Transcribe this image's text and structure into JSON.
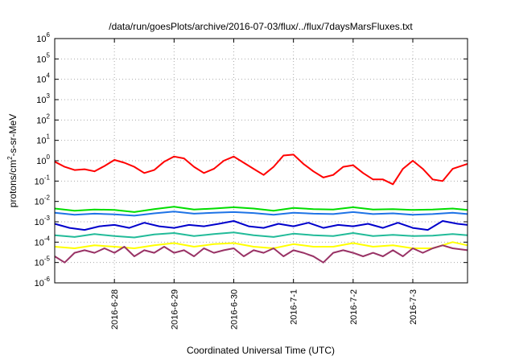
{
  "chart_data": {
    "type": "line",
    "title": "/data/run/goesPlots/archive/2016-07-03/flux/../flux/7daysMarsFluxes.txt",
    "xlabel": "Coordinated Universal Time (UTC)",
    "ylabel": "protons/cm²-s-sr-MeV",
    "yscale": "log",
    "ylim": [
      1e-06,
      1000000.0
    ],
    "y_ticks": [
      {
        "base": "10",
        "exp": "-6"
      },
      {
        "base": "10",
        "exp": "-5"
      },
      {
        "base": "10",
        "exp": "-4"
      },
      {
        "base": "10",
        "exp": "-3"
      },
      {
        "base": "10",
        "exp": "-2"
      },
      {
        "base": "10",
        "exp": "-1"
      },
      {
        "base": "10",
        "exp": "0"
      },
      {
        "base": "10",
        "exp": "1"
      },
      {
        "base": "10",
        "exp": "2"
      },
      {
        "base": "10",
        "exp": "3"
      },
      {
        "base": "10",
        "exp": "4"
      },
      {
        "base": "10",
        "exp": "5"
      },
      {
        "base": "10",
        "exp": "6"
      }
    ],
    "xlim": [
      "2016-06-27 00:00",
      "2016-07-03 22:00"
    ],
    "x_ticks": [
      "2016-6-28",
      "2016-6-29",
      "2016-6-30",
      "2016-7-1",
      "2016-7-2",
      "2016-7-3"
    ],
    "grid": true,
    "series": [
      {
        "color": "#ff0000",
        "x": [
          "2016-06-27 00:00",
          "2016-06-27 04:00",
          "2016-06-27 08:00",
          "2016-06-27 12:00",
          "2016-06-27 16:00",
          "2016-06-27 20:00",
          "2016-06-28 00:00",
          "2016-06-28 04:00",
          "2016-06-28 08:00",
          "2016-06-28 12:00",
          "2016-06-28 16:00",
          "2016-06-28 20:00",
          "2016-06-29 00:00",
          "2016-06-29 04:00",
          "2016-06-29 08:00",
          "2016-06-29 12:00",
          "2016-06-29 16:00",
          "2016-06-29 20:00",
          "2016-06-30 00:00",
          "2016-06-30 04:00",
          "2016-06-30 08:00",
          "2016-06-30 12:00",
          "2016-06-30 16:00",
          "2016-06-30 20:00",
          "2016-07-01 00:00",
          "2016-07-01 04:00",
          "2016-07-01 08:00",
          "2016-07-01 12:00",
          "2016-07-01 16:00",
          "2016-07-01 20:00",
          "2016-07-02 00:00",
          "2016-07-02 04:00",
          "2016-07-02 08:00",
          "2016-07-02 12:00",
          "2016-07-02 16:00",
          "2016-07-02 20:00",
          "2016-07-03 00:00",
          "2016-07-03 04:00",
          "2016-07-03 08:00",
          "2016-07-03 12:00",
          "2016-07-03 16:00",
          "2016-07-03 22:00"
        ],
        "values": [
          0.9,
          0.5,
          0.35,
          0.38,
          0.3,
          0.55,
          1.1,
          0.8,
          0.5,
          0.25,
          0.35,
          0.9,
          1.6,
          1.3,
          0.5,
          0.25,
          0.4,
          1.0,
          1.6,
          0.8,
          0.4,
          0.2,
          0.5,
          1.8,
          2.0,
          0.7,
          0.3,
          0.15,
          0.2,
          0.5,
          0.6,
          0.25,
          0.12,
          0.12,
          0.07,
          0.4,
          1.0,
          0.4,
          0.12,
          0.1,
          0.4,
          0.7
        ]
      },
      {
        "color": "#00dd00",
        "x": [
          "2016-06-27 00:00",
          "2016-06-27 08:00",
          "2016-06-27 16:00",
          "2016-06-28 00:00",
          "2016-06-28 08:00",
          "2016-06-28 16:00",
          "2016-06-29 00:00",
          "2016-06-29 08:00",
          "2016-06-29 16:00",
          "2016-06-30 00:00",
          "2016-06-30 08:00",
          "2016-06-30 16:00",
          "2016-07-01 00:00",
          "2016-07-01 08:00",
          "2016-07-01 16:00",
          "2016-07-02 00:00",
          "2016-07-02 08:00",
          "2016-07-02 16:00",
          "2016-07-03 00:00",
          "2016-07-03 08:00",
          "2016-07-03 16:00",
          "2016-07-03 22:00"
        ],
        "values": [
          0.0045,
          0.0035,
          0.004,
          0.0038,
          0.003,
          0.0042,
          0.0055,
          0.004,
          0.0045,
          0.0052,
          0.0045,
          0.0035,
          0.0048,
          0.0042,
          0.004,
          0.0052,
          0.004,
          0.0042,
          0.0038,
          0.004,
          0.0045,
          0.0038
        ]
      },
      {
        "color": "#1e73e6",
        "x": [
          "2016-06-27 00:00",
          "2016-06-27 08:00",
          "2016-06-27 16:00",
          "2016-06-28 00:00",
          "2016-06-28 08:00",
          "2016-06-28 16:00",
          "2016-06-29 00:00",
          "2016-06-29 08:00",
          "2016-06-29 16:00",
          "2016-06-30 00:00",
          "2016-06-30 08:00",
          "2016-06-30 16:00",
          "2016-07-01 00:00",
          "2016-07-01 08:00",
          "2016-07-01 16:00",
          "2016-07-02 00:00",
          "2016-07-02 08:00",
          "2016-07-02 16:00",
          "2016-07-03 00:00",
          "2016-07-03 08:00",
          "2016-07-03 16:00",
          "2016-07-03 22:00"
        ],
        "values": [
          0.0028,
          0.0022,
          0.0025,
          0.0023,
          0.002,
          0.0026,
          0.0032,
          0.0025,
          0.0028,
          0.003,
          0.0027,
          0.0022,
          0.0028,
          0.0025,
          0.0024,
          0.003,
          0.0024,
          0.0026,
          0.0022,
          0.0024,
          0.0028,
          0.0024
        ]
      },
      {
        "color": "#0000cc",
        "x": [
          "2016-06-27 00:00",
          "2016-06-27 06:00",
          "2016-06-27 12:00",
          "2016-06-27 18:00",
          "2016-06-28 00:00",
          "2016-06-28 06:00",
          "2016-06-28 12:00",
          "2016-06-28 18:00",
          "2016-06-29 00:00",
          "2016-06-29 06:00",
          "2016-06-29 12:00",
          "2016-06-29 18:00",
          "2016-06-30 00:00",
          "2016-06-30 06:00",
          "2016-06-30 12:00",
          "2016-06-30 18:00",
          "2016-07-01 00:00",
          "2016-07-01 06:00",
          "2016-07-01 12:00",
          "2016-07-01 18:00",
          "2016-07-02 00:00",
          "2016-07-02 06:00",
          "2016-07-02 12:00",
          "2016-07-02 18:00",
          "2016-07-03 00:00",
          "2016-07-03 06:00",
          "2016-07-03 12:00",
          "2016-07-03 18:00",
          "2016-07-03 22:00"
        ],
        "values": [
          0.0008,
          0.0005,
          0.0004,
          0.0006,
          0.0007,
          0.0005,
          0.0009,
          0.0006,
          0.0005,
          0.0007,
          0.0006,
          0.0008,
          0.0011,
          0.0006,
          0.0005,
          0.0008,
          0.0006,
          0.0009,
          0.0005,
          0.0007,
          0.0006,
          0.0008,
          0.0005,
          0.0009,
          0.0005,
          0.0004,
          0.0011,
          0.0008,
          0.0007
        ]
      },
      {
        "color": "#22bb99",
        "x": [
          "2016-06-27 00:00",
          "2016-06-27 08:00",
          "2016-06-27 16:00",
          "2016-06-28 00:00",
          "2016-06-28 08:00",
          "2016-06-28 16:00",
          "2016-06-29 00:00",
          "2016-06-29 08:00",
          "2016-06-29 16:00",
          "2016-06-30 00:00",
          "2016-06-30 08:00",
          "2016-06-30 16:00",
          "2016-07-01 00:00",
          "2016-07-01 08:00",
          "2016-07-01 16:00",
          "2016-07-02 00:00",
          "2016-07-02 08:00",
          "2016-07-02 16:00",
          "2016-07-03 00:00",
          "2016-07-03 08:00",
          "2016-07-03 16:00",
          "2016-07-03 22:00"
        ],
        "values": [
          0.00022,
          0.00018,
          0.00025,
          0.0002,
          0.00017,
          0.00024,
          0.00028,
          0.0002,
          0.00025,
          0.0003,
          0.00022,
          0.00018,
          0.00026,
          0.00022,
          0.0002,
          0.00028,
          0.0002,
          0.00023,
          0.0002,
          0.00021,
          0.00025,
          0.00022
        ]
      },
      {
        "color": "#ffff00",
        "x": [
          "2016-06-27 00:00",
          "2016-06-27 08:00",
          "2016-06-27 16:00",
          "2016-06-28 00:00",
          "2016-06-28 08:00",
          "2016-06-28 16:00",
          "2016-06-29 00:00",
          "2016-06-29 08:00",
          "2016-06-29 16:00",
          "2016-06-30 00:00",
          "2016-06-30 08:00",
          "2016-06-30 16:00",
          "2016-07-01 00:00",
          "2016-07-01 08:00",
          "2016-07-01 16:00",
          "2016-07-02 00:00",
          "2016-07-02 08:00",
          "2016-07-02 16:00",
          "2016-07-03 00:00",
          "2016-07-03 08:00",
          "2016-07-03 16:00",
          "2016-07-03 22:00"
        ],
        "values": [
          6e-05,
          5e-05,
          7e-05,
          6e-05,
          5e-05,
          7e-05,
          9e-05,
          6e-05,
          8e-05,
          9e-05,
          6e-05,
          5e-05,
          8e-05,
          6e-05,
          6e-05,
          9e-05,
          6e-05,
          7e-05,
          5e-05,
          5e-05,
          0.0001,
          7e-05
        ]
      },
      {
        "color": "#993366",
        "x": [
          "2016-06-27 00:00",
          "2016-06-27 04:00",
          "2016-06-27 08:00",
          "2016-06-27 12:00",
          "2016-06-27 16:00",
          "2016-06-27 20:00",
          "2016-06-28 00:00",
          "2016-06-28 04:00",
          "2016-06-28 08:00",
          "2016-06-28 12:00",
          "2016-06-28 16:00",
          "2016-06-28 20:00",
          "2016-06-29 00:00",
          "2016-06-29 04:00",
          "2016-06-29 08:00",
          "2016-06-29 12:00",
          "2016-06-29 16:00",
          "2016-06-29 20:00",
          "2016-06-30 00:00",
          "2016-06-30 04:00",
          "2016-06-30 08:00",
          "2016-06-30 12:00",
          "2016-06-30 16:00",
          "2016-06-30 20:00",
          "2016-07-01 00:00",
          "2016-07-01 04:00",
          "2016-07-01 08:00",
          "2016-07-01 12:00",
          "2016-07-01 16:00",
          "2016-07-01 20:00",
          "2016-07-02 00:00",
          "2016-07-02 04:00",
          "2016-07-02 08:00",
          "2016-07-02 12:00",
          "2016-07-02 16:00",
          "2016-07-02 20:00",
          "2016-07-03 00:00",
          "2016-07-03 04:00",
          "2016-07-03 08:00",
          "2016-07-03 12:00",
          "2016-07-03 16:00",
          "2016-07-03 22:00"
        ],
        "values": [
          2e-05,
          1e-05,
          3e-05,
          4e-05,
          3e-05,
          5e-05,
          3e-05,
          6e-05,
          2e-05,
          4e-05,
          3e-05,
          6e-05,
          3e-05,
          4e-05,
          2e-05,
          5e-05,
          3e-05,
          4e-05,
          5e-05,
          2e-05,
          4e-05,
          3e-05,
          5e-05,
          2e-05,
          4e-05,
          3e-05,
          2e-05,
          1e-05,
          3e-05,
          4e-05,
          3e-05,
          2e-05,
          3e-05,
          2e-05,
          4e-05,
          2e-05,
          5e-05,
          3e-05,
          5e-05,
          7e-05,
          5e-05,
          4e-05
        ]
      }
    ]
  }
}
